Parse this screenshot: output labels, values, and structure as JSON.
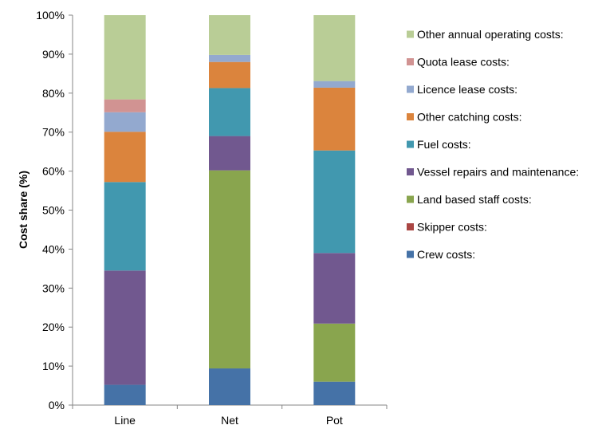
{
  "chart_data": {
    "type": "bar",
    "stacked": true,
    "title": "",
    "xlabel": "",
    "ylabel": "Cost share (%)",
    "ylim": [
      0,
      100
    ],
    "y_ticks": [
      0,
      10,
      20,
      30,
      40,
      50,
      60,
      70,
      80,
      90,
      100
    ],
    "y_tick_labels": [
      "0%",
      "10%",
      "20%",
      "30%",
      "40%",
      "50%",
      "60%",
      "70%",
      "80%",
      "90%",
      "100%"
    ],
    "grid": false,
    "legend_position": "right",
    "categories": [
      "Line",
      "Net",
      "Pot"
    ],
    "series": [
      {
        "name": "Crew costs:",
        "color": "#4572A7",
        "values": [
          5.2,
          9.4,
          6.0
        ]
      },
      {
        "name": "Skipper costs:",
        "color": "#AA4643",
        "values": [
          0.0,
          0.0,
          0.0
        ]
      },
      {
        "name": "Land based staff costs:",
        "color": "#89A54E",
        "values": [
          0.0,
          50.8,
          14.9
        ]
      },
      {
        "name": "Vessel repairs and maintenance:",
        "color": "#71588F",
        "values": [
          29.3,
          8.8,
          18.1
        ]
      },
      {
        "name": "Fuel costs:",
        "color": "#4198AF",
        "values": [
          22.7,
          12.3,
          26.3
        ]
      },
      {
        "name": "Other catching costs:",
        "color": "#DB843D",
        "values": [
          12.9,
          6.7,
          16.1
        ]
      },
      {
        "name": "Licence lease costs:",
        "color": "#93A9CF",
        "values": [
          5.0,
          1.8,
          1.7
        ]
      },
      {
        "name": "Quota lease costs:",
        "color": "#D19392",
        "values": [
          3.3,
          0.0,
          0.0
        ]
      },
      {
        "name": "Other annual operating costs:",
        "color": "#B9CD96",
        "values": [
          21.6,
          10.2,
          16.9
        ]
      }
    ]
  }
}
